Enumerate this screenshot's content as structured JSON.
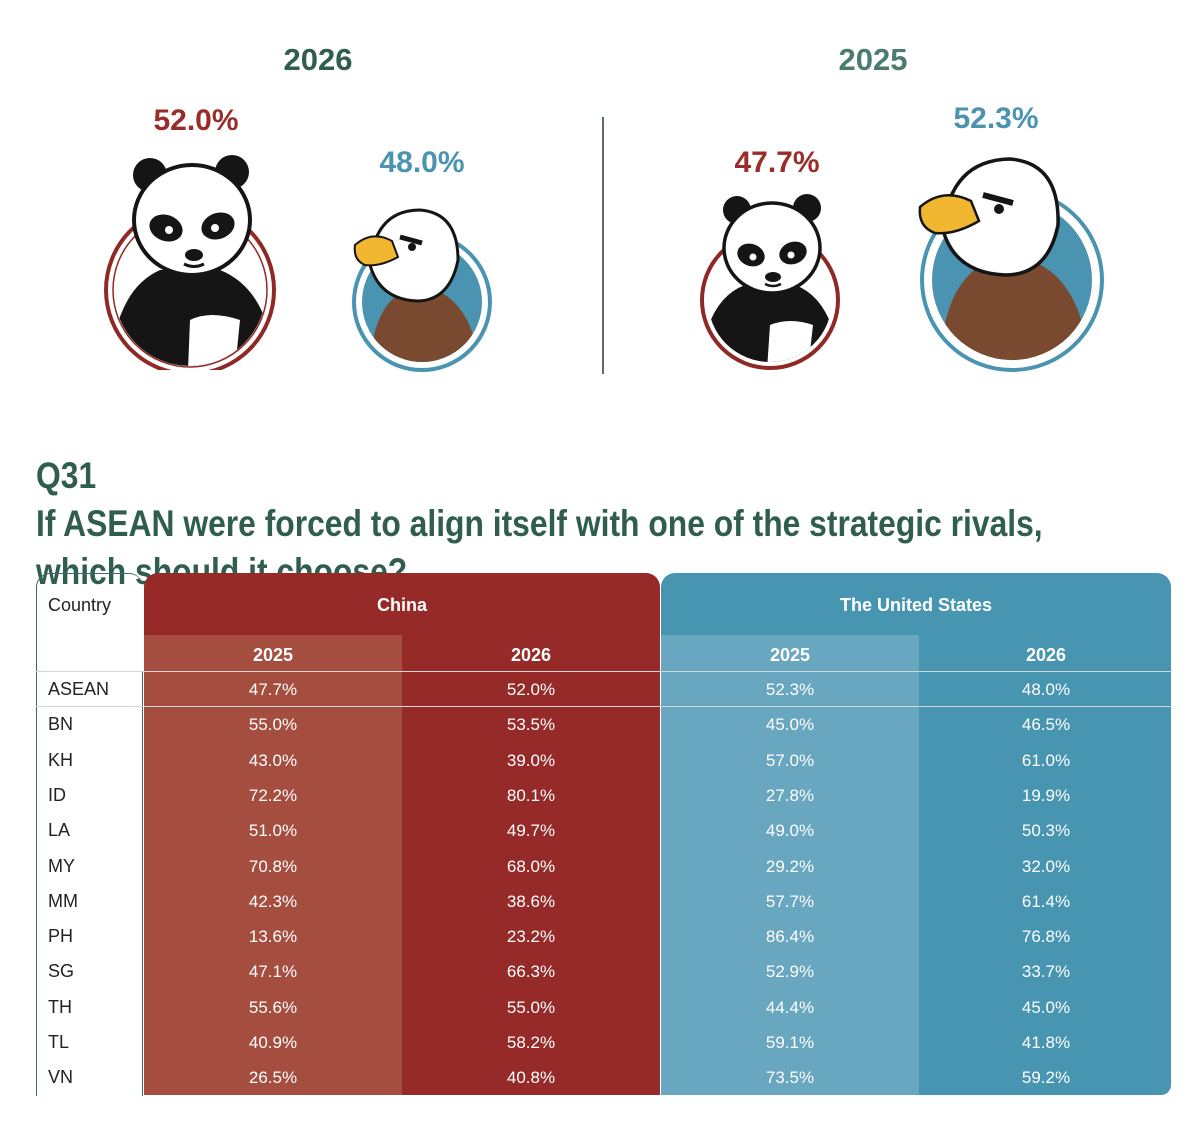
{
  "summary": {
    "left": {
      "year": "2026",
      "china_pct": "52.0%",
      "us_pct": "48.0%"
    },
    "right": {
      "year": "2025",
      "china_pct": "47.7%",
      "us_pct": "52.3%"
    }
  },
  "question": {
    "number": "Q31",
    "text": "If ASEAN were forced to align itself with one of the strategic rivals, which should it choose?"
  },
  "table": {
    "country_header": "Country",
    "china_header": "China",
    "us_header": "The United States",
    "year_headers": [
      "2025",
      "2026",
      "2025",
      "2026"
    ],
    "rows": [
      {
        "country": "ASEAN",
        "china_2025": "47.7%",
        "china_2026": "52.0%",
        "us_2025": "52.3%",
        "us_2026": "48.0%"
      },
      {
        "country": "BN",
        "china_2025": "55.0%",
        "china_2026": "53.5%",
        "us_2025": "45.0%",
        "us_2026": "46.5%"
      },
      {
        "country": "KH",
        "china_2025": "43.0%",
        "china_2026": "39.0%",
        "us_2025": "57.0%",
        "us_2026": "61.0%"
      },
      {
        "country": "ID",
        "china_2025": "72.2%",
        "china_2026": "80.1%",
        "us_2025": "27.8%",
        "us_2026": "19.9%"
      },
      {
        "country": "LA",
        "china_2025": "51.0%",
        "china_2026": "49.7%",
        "us_2025": "49.0%",
        "us_2026": "50.3%"
      },
      {
        "country": "MY",
        "china_2025": "70.8%",
        "china_2026": "68.0%",
        "us_2025": "29.2%",
        "us_2026": "32.0%"
      },
      {
        "country": "MM",
        "china_2025": "42.3%",
        "china_2026": "38.6%",
        "us_2025": "57.7%",
        "us_2026": "61.4%"
      },
      {
        "country": "PH",
        "china_2025": "13.6%",
        "china_2026": "23.2%",
        "us_2025": "86.4%",
        "us_2026": "76.8%"
      },
      {
        "country": "SG",
        "china_2025": "47.1%",
        "china_2026": "66.3%",
        "us_2025": "52.9%",
        "us_2026": "33.7%"
      },
      {
        "country": "TH",
        "china_2025": "55.6%",
        "china_2026": "55.0%",
        "us_2025": "44.4%",
        "us_2026": "45.0%"
      },
      {
        "country": "TL",
        "china_2025": "40.9%",
        "china_2026": "58.2%",
        "us_2025": "59.1%",
        "us_2026": "41.8%"
      },
      {
        "country": "VN",
        "china_2025": "26.5%",
        "china_2026": "40.8%",
        "us_2025": "73.5%",
        "us_2026": "59.2%"
      }
    ]
  },
  "colors": {
    "china": "#952a28",
    "china_light": "#a54e3f",
    "us": "#4895b1",
    "us_light": "#69a6bf",
    "title": "#2f5e4f"
  },
  "chart_data": {
    "type": "table",
    "title": "If ASEAN were forced to align itself with one of the strategic rivals, which should it choose?",
    "categories": [
      "ASEAN",
      "BN",
      "KH",
      "ID",
      "LA",
      "MY",
      "MM",
      "PH",
      "SG",
      "TH",
      "TL",
      "VN"
    ],
    "series": [
      {
        "name": "China 2025",
        "values": [
          47.7,
          55.0,
          43.0,
          72.2,
          51.0,
          70.8,
          42.3,
          13.6,
          47.1,
          55.6,
          40.9,
          26.5
        ]
      },
      {
        "name": "China 2026",
        "values": [
          52.0,
          53.5,
          39.0,
          80.1,
          49.7,
          68.0,
          38.6,
          23.2,
          66.3,
          55.0,
          58.2,
          40.8
        ]
      },
      {
        "name": "The United States 2025",
        "values": [
          52.3,
          45.0,
          57.0,
          27.8,
          49.0,
          29.2,
          57.7,
          86.4,
          52.9,
          44.4,
          59.1,
          73.5
        ]
      },
      {
        "name": "The United States 2026",
        "values": [
          48.0,
          46.5,
          61.0,
          19.9,
          50.3,
          32.0,
          61.4,
          76.8,
          33.7,
          45.0,
          41.8,
          59.2
        ]
      }
    ]
  }
}
